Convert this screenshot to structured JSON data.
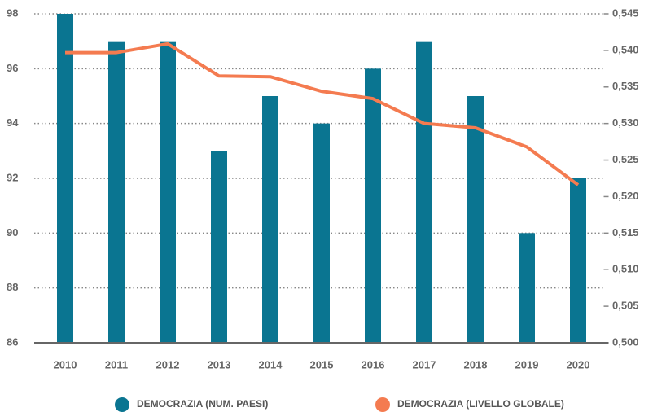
{
  "chart_data": {
    "type": "bar_line",
    "categories": [
      "2010",
      "2011",
      "2012",
      "2013",
      "2014",
      "2015",
      "2016",
      "2017",
      "2018",
      "2019",
      "2020"
    ],
    "series": [
      {
        "name": "DEMOCRAZIA (NUM. PAESI)",
        "color": "#0a7591",
        "type": "bar",
        "values": [
          98,
          97,
          97,
          93,
          95,
          94,
          96,
          97,
          95,
          90,
          92
        ]
      },
      {
        "name": "DEMOCRAZIA (LIVELLO GLOBALE)",
        "color": "#f47b50",
        "type": "line",
        "axis": "y2",
        "values": [
          0.5397,
          0.5397,
          0.5409,
          0.5365,
          0.5364,
          0.5344,
          0.5334,
          0.53,
          0.5294,
          0.5268,
          0.5216
        ]
      }
    ],
    "ylim": [
      86,
      98
    ],
    "yticks": [
      86,
      88,
      90,
      92,
      94,
      96,
      98
    ],
    "y2lim": [
      0.5,
      0.545
    ],
    "y2ticks": [
      {
        "value": 0.5,
        "label": "0,500"
      },
      {
        "value": 0.505,
        "label": "0,505"
      },
      {
        "value": 0.51,
        "label": "0,510"
      },
      {
        "value": 0.515,
        "label": "0,515"
      },
      {
        "value": 0.52,
        "label": "0,520"
      },
      {
        "value": 0.525,
        "label": "0,525"
      },
      {
        "value": 0.53,
        "label": "0,530"
      },
      {
        "value": 0.535,
        "label": "0,535"
      },
      {
        "value": 0.54,
        "label": "0,540"
      },
      {
        "value": 0.545,
        "label": "0,545"
      }
    ],
    "grid": true,
    "legend": "bottom"
  }
}
